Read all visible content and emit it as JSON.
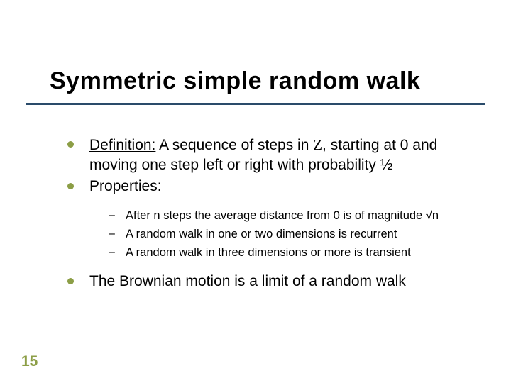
{
  "slide": {
    "title": "Symmetric simple random walk",
    "title_fontsize": 34,
    "title_color": "#000000",
    "underline_color": "#2a4b6a",
    "background_color": "#ffffff",
    "bullet_dot_color": "#8c9e46",
    "page_number": "15",
    "page_number_color": "#8c9e46",
    "bullets": [
      {
        "definition_label": "Definition:",
        "definition_rest": " A sequence of steps in ",
        "z_symbol": "Z",
        "definition_tail": ", starting at 0 and moving one step left or right with probability ½"
      },
      {
        "text": "Properties:"
      },
      {
        "text": "The Brownian motion is a limit of a random walk"
      }
    ],
    "sub_bullets": [
      {
        "text": "After n steps the average distance from 0 is of magnitude √n"
      },
      {
        "text": "A random walk in one or two dimensions is recurrent"
      },
      {
        "text": "A random walk in three dimensions or more is transient"
      }
    ]
  }
}
